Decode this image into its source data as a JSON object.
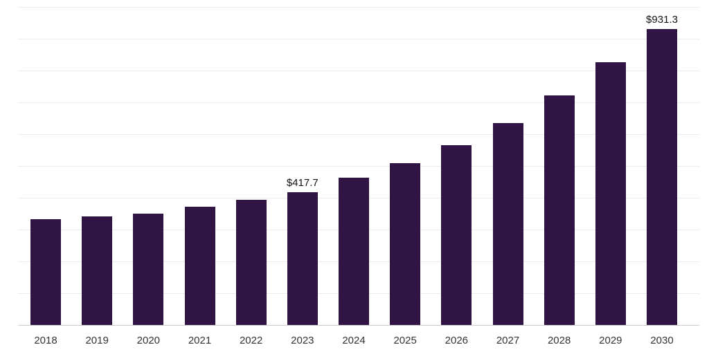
{
  "chart_data": {
    "type": "bar",
    "title": "",
    "xlabel": "",
    "ylabel": "",
    "categories": [
      "2018",
      "2019",
      "2020",
      "2021",
      "2022",
      "2023",
      "2024",
      "2025",
      "2026",
      "2027",
      "2028",
      "2029",
      "2030"
    ],
    "values": [
      333,
      341,
      350,
      371,
      394,
      417.7,
      463,
      508,
      566,
      634,
      721,
      827,
      931.3
    ],
    "data_labels": [
      "",
      "",
      "",
      "",
      "",
      "$417.7",
      "",
      "",
      "",
      "",
      "",
      "",
      "$931.3"
    ],
    "ylim": [
      0,
      1000
    ],
    "gridline_interval": 100,
    "grid": true,
    "legend": false,
    "bar_color": "#2f1444",
    "value_label_color": "#111111",
    "tick_label_color": "#333333",
    "gridline_color": "#ececec",
    "axis_line_color": "#cccccc",
    "background_color": "#ffffff"
  }
}
